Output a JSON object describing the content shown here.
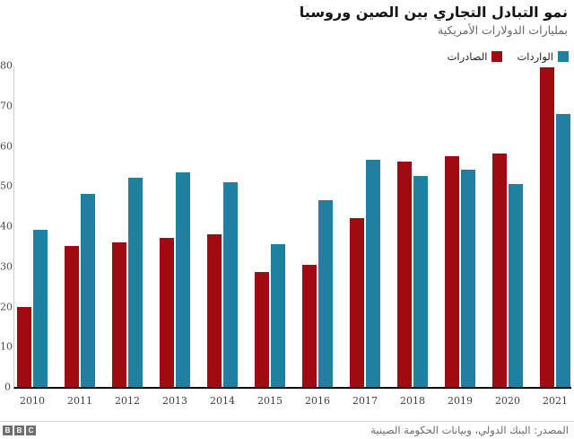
{
  "header": {
    "title": "نمو التبادل التجاري بين الصين وروسيا",
    "subtitle": "بمليارات الدولارات الأمريكية"
  },
  "legend": [
    {
      "key": "imports",
      "label": "الواردات",
      "color": "#1f80a1"
    },
    {
      "key": "exports",
      "label": "الصادرات",
      "color": "#9f0b10"
    }
  ],
  "chart_data": {
    "type": "bar",
    "title": "نمو التبادل التجاري بين الصين وروسيا",
    "subtitle": "بمليارات الدولارات الأمريكية",
    "xlabel": "",
    "ylabel": "",
    "categories": [
      "2010",
      "2011",
      "2012",
      "2013",
      "2014",
      "2015",
      "2016",
      "2017",
      "2018",
      "2019",
      "2020",
      "2021"
    ],
    "series": [
      {
        "key": "exports",
        "name": "الصادرات",
        "color": "#9f0b10",
        "values": [
          20,
          35,
          36,
          37,
          38,
          28.5,
          30.5,
          42,
          56,
          57.5,
          58,
          79.5
        ]
      },
      {
        "key": "imports",
        "name": "الواردات",
        "color": "#1f80a1",
        "values": [
          39,
          48,
          52,
          53.5,
          51,
          35.5,
          46.5,
          56.5,
          52.5,
          54,
          50.5,
          68
        ]
      }
    ],
    "ylim": [
      0,
      80
    ],
    "yticks": [
      0,
      10,
      20,
      30,
      40,
      50,
      60,
      70,
      80
    ],
    "grid": false,
    "legend_position": "top-right"
  },
  "footer": {
    "source": "المصدر: البنك الدولي، وبيانات الحكومة الصينية",
    "logo_blocks": [
      "B",
      "B",
      "C"
    ]
  }
}
